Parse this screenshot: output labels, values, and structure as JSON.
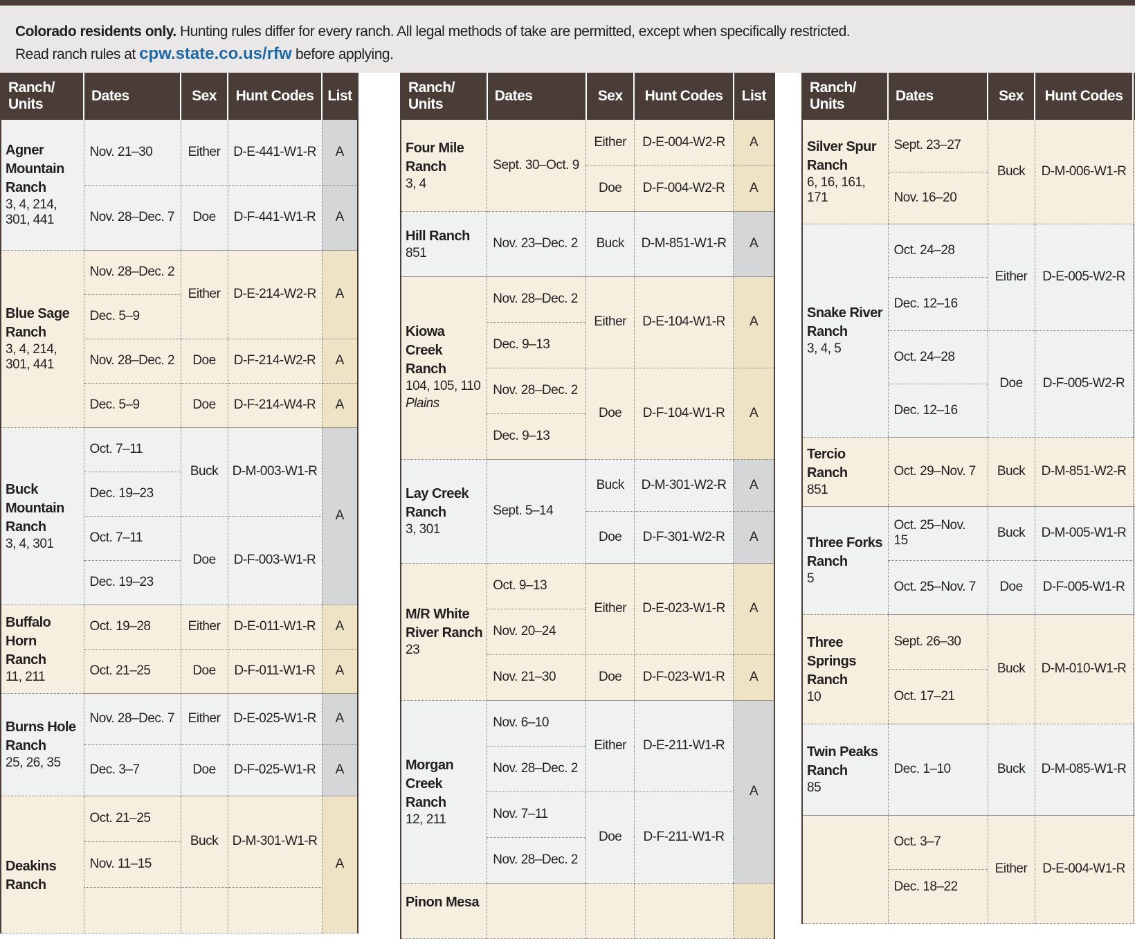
{
  "intro": {
    "bold": "Colorado residents only.",
    "line1": "Hunting rules differ for every ranch. All legal methods of take are permitted, except when specifically restricted.",
    "line2_before": "Read ranch rules at",
    "link": "cpw.state.co.us/rfw",
    "line2_after": "before applying."
  },
  "headers": {
    "ranch_line1": "Ranch/",
    "ranch_line2": "Units",
    "dates": "Dates",
    "sex": "Sex",
    "hunt_codes": "Hunt Codes",
    "list": "List"
  },
  "columns": [
    {
      "ranches": [
        {
          "name": "Agner Mountain Ranch",
          "units": "3, 4, 214, 301, 441",
          "shade": "gray",
          "rows": [
            {
              "dates": "Nov. 21–30",
              "sex": "Either",
              "code": "D-E-441-W1-R",
              "list": "A"
            },
            {
              "dates": "Nov. 28–Dec. 7",
              "sex": "Doe",
              "code": "D-F-441-W1-R",
              "list": "A"
            }
          ]
        },
        {
          "name": "Blue Sage Ranch",
          "units": "3, 4, 214, 301, 441",
          "shade": "cream",
          "rows": [
            {
              "dates": "Nov. 28–Dec. 2",
              "sex": "Either",
              "code": "D-E-214-W2-R",
              "list": "A"
            },
            {
              "dates": "Dec. 5–9"
            },
            {
              "dates": "Nov. 28–Dec. 2",
              "sex": "Doe",
              "code": "D-F-214-W2-R",
              "list": "A"
            },
            {
              "dates": "Dec. 5–9",
              "sex": "Doe",
              "code": "D-F-214-W4-R",
              "list": "A"
            }
          ]
        },
        {
          "name": "Buck Mountain Ranch",
          "units": "3, 4, 301",
          "shade": "gray",
          "rows": [
            {
              "dates": "Oct. 7–11",
              "sex": "Buck",
              "code": "D-M-003-W1-R",
              "list": "A"
            },
            {
              "dates": "Dec. 19–23"
            },
            {
              "dates": "Oct. 7–11",
              "sex": "Doe",
              "code": "D-F-003-W1-R",
              "list": "A"
            },
            {
              "dates": "Dec. 19–23"
            }
          ]
        },
        {
          "name": "Buffalo Horn Ranch",
          "units": "11, 211",
          "shade": "cream",
          "rows": [
            {
              "dates": "Oct. 19–28",
              "sex": "Either",
              "code": "D-E-011-W1-R",
              "list": "A"
            },
            {
              "dates": "Oct. 21–25",
              "sex": "Doe",
              "code": "D-F-011-W1-R",
              "list": "A"
            }
          ]
        },
        {
          "name": "Burns Hole Ranch",
          "units": "25, 26, 35",
          "shade": "gray",
          "rows": [
            {
              "dates": "Nov. 28–Dec. 7",
              "sex": "Either",
              "code": "D-E-025-W1-R",
              "list": "A"
            },
            {
              "dates": "Dec. 3–7",
              "sex": "Doe",
              "code": "D-F-025-W1-R",
              "list": "A"
            }
          ]
        },
        {
          "name": "Deakins Ranch",
          "units": "",
          "shade": "cream",
          "rows": [
            {
              "dates": "Oct. 21–25",
              "sex": "Buck",
              "code": "D-M-301-W1-R",
              "list": "A"
            },
            {
              "dates": "Nov. 11–15"
            },
            {
              "dates": ""
            }
          ]
        }
      ]
    },
    {
      "ranches": [
        {
          "name": "Four Mile Ranch",
          "units": "3, 4",
          "shade": "cream",
          "rows": [
            {
              "dates": "Sept. 30–Oct. 9",
              "sex": "Either",
              "code": "D-E-004-W2-R",
              "list": "A"
            },
            {
              "sex": "Doe",
              "code": "D-F-004-W2-R",
              "list": "A"
            }
          ]
        },
        {
          "name": "Hill Ranch",
          "units": "851",
          "shade": "gray",
          "rows": [
            {
              "dates": "Nov. 23–Dec. 2",
              "sex": "Buck",
              "code": "D-M-851-W1-R",
              "list": "A"
            }
          ]
        },
        {
          "name": "Kiowa Creek Ranch",
          "units": "104, 105, 110",
          "extra": "Plains",
          "shade": "cream",
          "rows": [
            {
              "dates": "Nov. 28–Dec. 2",
              "sex": "Either",
              "code": "D-E-104-W1-R",
              "list": "A"
            },
            {
              "dates": "Dec. 9–13"
            },
            {
              "dates": "Nov. 28–Dec. 2",
              "sex": "Doe",
              "code": "D-F-104-W1-R",
              "list": "A"
            },
            {
              "dates": "Dec. 9–13"
            }
          ]
        },
        {
          "name": "Lay Creek Ranch",
          "units": "3, 301",
          "shade": "gray",
          "rows": [
            {
              "dates": "Sept. 5–14",
              "sex": "Buck",
              "code": "D-M-301-W2-R",
              "list": "A"
            },
            {
              "sex": "Doe",
              "code": "D-F-301-W2-R",
              "list": "A"
            }
          ]
        },
        {
          "name": "M/R White River Ranch",
          "units": "23",
          "shade": "cream",
          "rows": [
            {
              "dates": "Oct. 9–13",
              "sex": "Either",
              "code": "D-E-023-W1-R",
              "list": "A"
            },
            {
              "dates": "Nov. 20–24"
            },
            {
              "dates": "Nov. 21–30",
              "sex": "Doe",
              "code": "D-F-023-W1-R",
              "list": "A"
            }
          ]
        },
        {
          "name": "Morgan Creek Ranch",
          "units": "12, 211",
          "shade": "gray",
          "rows": [
            {
              "dates": "Nov. 6–10",
              "sex": "Either",
              "code": "D-E-211-W1-R",
              "list": "A"
            },
            {
              "dates": "Nov. 28–Dec. 2"
            },
            {
              "dates": "Nov. 7–11",
              "sex": "Doe",
              "code": "D-F-211-W1-R",
              "list": "A"
            },
            {
              "dates": "Nov. 28–Dec. 2"
            }
          ]
        },
        {
          "name": "Pinon Mesa",
          "units": "",
          "shade": "cream",
          "rows": [
            {
              "dates": "",
              "sex": "",
              "code": "",
              "list": ""
            }
          ]
        }
      ]
    },
    {
      "ranches": [
        {
          "name": "Silver Spur Ranch",
          "units": "6, 16, 161, 171",
          "shade": "cream",
          "rows": [
            {
              "dates": "Sept. 23–27",
              "sex": "Buck",
              "code": "D-M-006-W1-R",
              "list": ""
            },
            {
              "dates": "Nov. 16–20"
            }
          ]
        },
        {
          "name": "Snake River Ranch",
          "units": "3, 4, 5",
          "shade": "gray",
          "rows": [
            {
              "dates": "Oct. 24–28",
              "sex": "Either",
              "code": "D-E-005-W2-R",
              "list": ""
            },
            {
              "dates": "Dec. 12–16"
            },
            {
              "dates": "Oct. 24–28",
              "sex": "Doe",
              "code": "D-F-005-W2-R",
              "list": ""
            },
            {
              "dates": "Dec. 12–16"
            }
          ]
        },
        {
          "name": "Tercio Ranch",
          "units": "851",
          "shade": "cream",
          "rows": [
            {
              "dates": "Oct. 29–Nov. 7",
              "sex": "Buck",
              "code": "D-M-851-W2-R",
              "list": ""
            }
          ]
        },
        {
          "name": "Three Forks Ranch",
          "units": "5",
          "shade": "gray",
          "rows": [
            {
              "dates": "Oct. 25–Nov. 15",
              "sex": "Buck",
              "code": "D-M-005-W1-R",
              "list": ""
            },
            {
              "dates": "Oct. 25–Nov. 7",
              "sex": "Doe",
              "code": "D-F-005-W1-R",
              "list": ""
            }
          ]
        },
        {
          "name": "Three Springs Ranch",
          "units": "10",
          "shade": "cream",
          "rows": [
            {
              "dates": "Sept. 26–30",
              "sex": "Buck",
              "code": "D-M-010-W1-R",
              "list": ""
            },
            {
              "dates": "Oct. 17–21"
            }
          ]
        },
        {
          "name": "Twin Peaks Ranch",
          "units": "85",
          "shade": "gray",
          "rows": [
            {
              "dates": "Dec. 1–10",
              "sex": "Buck",
              "code": "D-M-085-W1-R",
              "list": ""
            }
          ]
        },
        {
          "name": "",
          "units": "",
          "shade": "cream",
          "rows": [
            {
              "dates": "Oct. 3–7",
              "sex": "Either",
              "code": "D-E-004-W1-R",
              "list": ""
            },
            {
              "dates": "Dec. 18–22"
            }
          ]
        }
      ]
    }
  ]
}
